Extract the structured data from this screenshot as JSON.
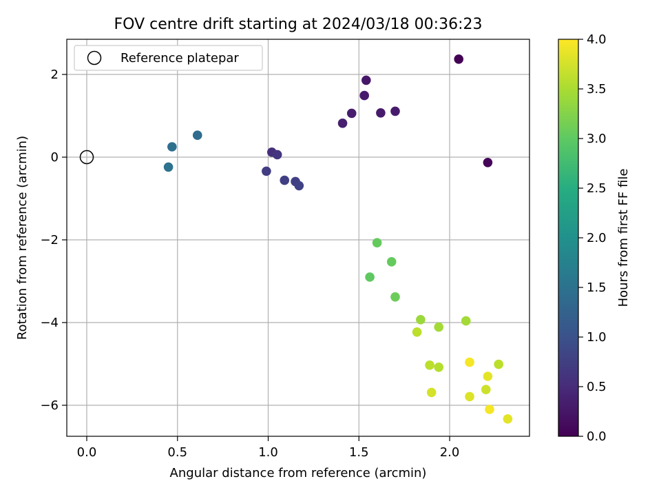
{
  "chart_data": {
    "type": "scatter",
    "title": "FOV centre drift starting at 2024/03/18 00:36:23",
    "xlabel": "Angular distance from reference (arcmin)",
    "ylabel": "Rotation from reference (arcmin)",
    "xlim": [
      -0.11,
      2.44
    ],
    "ylim": [
      -6.75,
      2.85
    ],
    "xticks": [
      0.0,
      0.5,
      1.0,
      1.5,
      2.0
    ],
    "xtick_labels": [
      "0.0",
      "0.5",
      "1.0",
      "1.5",
      "2.0"
    ],
    "yticks": [
      -6,
      -4,
      -2,
      0,
      2
    ],
    "ytick_labels": [
      "−6",
      "−4",
      "−2",
      "0",
      "2"
    ],
    "grid": true,
    "legend": {
      "placement": "top-left",
      "entries": [
        "Reference platepar"
      ]
    },
    "reference_point": {
      "x": 0.0,
      "y": 0.0
    },
    "colorbar": {
      "label": "Hours from first FF file",
      "colormap": "viridis",
      "range": [
        0.0,
        4.0
      ],
      "ticks": [
        0.0,
        0.5,
        1.0,
        1.5,
        2.0,
        2.5,
        3.0,
        3.5,
        4.0
      ],
      "tick_labels": [
        "0.0",
        "0.5",
        "1.0",
        "1.5",
        "2.0",
        "2.5",
        "3.0",
        "3.5",
        "4.0"
      ]
    },
    "points": [
      {
        "x": 2.05,
        "y": 2.37,
        "c": 0.0
      },
      {
        "x": 2.21,
        "y": -0.13,
        "c": 0.05
      },
      {
        "x": 1.54,
        "y": 1.86,
        "c": 0.25
      },
      {
        "x": 1.53,
        "y": 1.49,
        "c": 0.28
      },
      {
        "x": 1.7,
        "y": 1.11,
        "c": 0.3
      },
      {
        "x": 1.62,
        "y": 1.07,
        "c": 0.3
      },
      {
        "x": 1.46,
        "y": 1.06,
        "c": 0.32
      },
      {
        "x": 1.41,
        "y": 0.82,
        "c": 0.35
      },
      {
        "x": 1.02,
        "y": 0.12,
        "c": 0.55
      },
      {
        "x": 1.05,
        "y": 0.06,
        "c": 0.6
      },
      {
        "x": 0.99,
        "y": -0.34,
        "c": 0.7
      },
      {
        "x": 1.09,
        "y": -0.56,
        "c": 0.75
      },
      {
        "x": 1.15,
        "y": -0.59,
        "c": 0.75
      },
      {
        "x": 1.17,
        "y": -0.69,
        "c": 0.78
      },
      {
        "x": 0.61,
        "y": 0.53,
        "c": 1.4
      },
      {
        "x": 0.47,
        "y": 0.25,
        "c": 1.45
      },
      {
        "x": 0.45,
        "y": -0.24,
        "c": 1.5
      },
      {
        "x": 1.6,
        "y": -2.07,
        "c": 3.05
      },
      {
        "x": 1.68,
        "y": -2.53,
        "c": 3.05
      },
      {
        "x": 1.56,
        "y": -2.9,
        "c": 3.0
      },
      {
        "x": 1.7,
        "y": -3.38,
        "c": 3.1
      },
      {
        "x": 1.84,
        "y": -3.93,
        "c": 3.4
      },
      {
        "x": 1.94,
        "y": -4.11,
        "c": 3.45
      },
      {
        "x": 2.09,
        "y": -3.96,
        "c": 3.45
      },
      {
        "x": 1.82,
        "y": -4.23,
        "c": 3.6
      },
      {
        "x": 1.89,
        "y": -5.03,
        "c": 3.6
      },
      {
        "x": 1.94,
        "y": -5.08,
        "c": 3.55
      },
      {
        "x": 2.27,
        "y": -5.01,
        "c": 3.6
      },
      {
        "x": 2.11,
        "y": -4.96,
        "c": 3.95
      },
      {
        "x": 2.21,
        "y": -5.3,
        "c": 3.85
      },
      {
        "x": 2.2,
        "y": -5.62,
        "c": 3.7
      },
      {
        "x": 1.9,
        "y": -5.69,
        "c": 3.75
      },
      {
        "x": 2.11,
        "y": -5.79,
        "c": 3.8
      },
      {
        "x": 2.22,
        "y": -6.1,
        "c": 3.95
      },
      {
        "x": 2.32,
        "y": -6.33,
        "c": 3.85
      }
    ]
  }
}
